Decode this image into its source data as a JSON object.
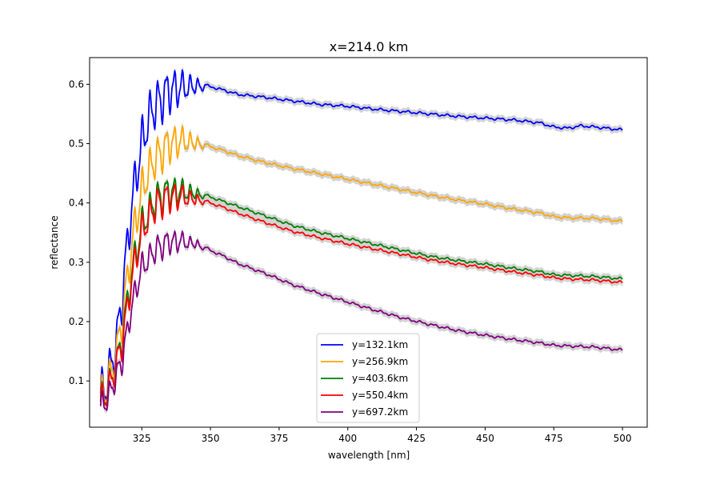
{
  "chart_data": {
    "type": "line",
    "title": "x=214.0 km",
    "xlabel": "wavelength [nm]",
    "ylabel": "reflectance",
    "xlim": [
      306,
      509
    ],
    "ylim": [
      0.022,
      0.645
    ],
    "xticks": [
      325,
      350,
      375,
      400,
      425,
      450,
      475,
      500
    ],
    "yticks": [
      0.1,
      0.2,
      0.3,
      0.4,
      0.5,
      0.6
    ],
    "xtick_labels": [
      "325",
      "350",
      "375",
      "400",
      "425",
      "450",
      "475",
      "500"
    ],
    "ytick_labels": [
      "0.1",
      "0.2",
      "0.3",
      "0.4",
      "0.5",
      "0.6"
    ],
    "grid": false,
    "legend_position": "lower-center",
    "uncertainty_band_color": "#d3d3d3",
    "x_start": 310,
    "x_end": 500,
    "series": [
      {
        "name": "y=132.1km",
        "color": "#0000ff",
        "points": [
          [
            310,
            0.07
          ],
          [
            313,
            0.11
          ],
          [
            316,
            0.17
          ],
          [
            318,
            0.25
          ],
          [
            320,
            0.34
          ],
          [
            322,
            0.42
          ],
          [
            325,
            0.5
          ],
          [
            328,
            0.55
          ],
          [
            331,
            0.57
          ],
          [
            335,
            0.59
          ],
          [
            340,
            0.595
          ],
          [
            345,
            0.597
          ],
          [
            350,
            0.596
          ],
          [
            355,
            0.59
          ],
          [
            360,
            0.583
          ],
          [
            370,
            0.578
          ],
          [
            380,
            0.572
          ],
          [
            390,
            0.566
          ],
          [
            400,
            0.563
          ],
          [
            410,
            0.558
          ],
          [
            420,
            0.554
          ],
          [
            430,
            0.55
          ],
          [
            440,
            0.546
          ],
          [
            450,
            0.543
          ],
          [
            460,
            0.54
          ],
          [
            470,
            0.535
          ],
          [
            475,
            0.528
          ],
          [
            480,
            0.526
          ],
          [
            485,
            0.53
          ],
          [
            490,
            0.528
          ],
          [
            500,
            0.523
          ]
        ]
      },
      {
        "name": "y=256.9km",
        "color": "#ffa500",
        "points": [
          [
            310,
            0.065
          ],
          [
            313,
            0.1
          ],
          [
            316,
            0.15
          ],
          [
            318,
            0.21
          ],
          [
            320,
            0.28
          ],
          [
            322,
            0.35
          ],
          [
            325,
            0.42
          ],
          [
            328,
            0.46
          ],
          [
            331,
            0.48
          ],
          [
            335,
            0.5
          ],
          [
            340,
            0.505
          ],
          [
            345,
            0.5
          ],
          [
            350,
            0.495
          ],
          [
            355,
            0.488
          ],
          [
            360,
            0.48
          ],
          [
            370,
            0.468
          ],
          [
            380,
            0.458
          ],
          [
            390,
            0.449
          ],
          [
            400,
            0.44
          ],
          [
            410,
            0.431
          ],
          [
            420,
            0.422
          ],
          [
            430,
            0.413
          ],
          [
            440,
            0.405
          ],
          [
            450,
            0.398
          ],
          [
            460,
            0.39
          ],
          [
            470,
            0.383
          ],
          [
            475,
            0.377
          ],
          [
            480,
            0.375
          ],
          [
            490,
            0.374
          ],
          [
            500,
            0.369
          ]
        ]
      },
      {
        "name": "y=403.6km",
        "color": "#008000",
        "points": [
          [
            310,
            0.06
          ],
          [
            313,
            0.09
          ],
          [
            316,
            0.13
          ],
          [
            318,
            0.18
          ],
          [
            320,
            0.24
          ],
          [
            322,
            0.3
          ],
          [
            325,
            0.36
          ],
          [
            328,
            0.39
          ],
          [
            331,
            0.41
          ],
          [
            335,
            0.42
          ],
          [
            340,
            0.42
          ],
          [
            345,
            0.415
          ],
          [
            350,
            0.41
          ],
          [
            355,
            0.402
          ],
          [
            360,
            0.394
          ],
          [
            370,
            0.378
          ],
          [
            380,
            0.362
          ],
          [
            390,
            0.35
          ],
          [
            400,
            0.34
          ],
          [
            410,
            0.33
          ],
          [
            420,
            0.32
          ],
          [
            430,
            0.31
          ],
          [
            440,
            0.303
          ],
          [
            450,
            0.297
          ],
          [
            460,
            0.29
          ],
          [
            470,
            0.284
          ],
          [
            475,
            0.279
          ],
          [
            480,
            0.278
          ],
          [
            490,
            0.276
          ],
          [
            500,
            0.272
          ]
        ]
      },
      {
        "name": "y=550.4km",
        "color": "#ff0000",
        "points": [
          [
            310,
            0.058
          ],
          [
            313,
            0.088
          ],
          [
            316,
            0.13
          ],
          [
            318,
            0.17
          ],
          [
            320,
            0.23
          ],
          [
            322,
            0.29
          ],
          [
            325,
            0.35
          ],
          [
            328,
            0.38
          ],
          [
            331,
            0.4
          ],
          [
            335,
            0.41
          ],
          [
            340,
            0.41
          ],
          [
            345,
            0.405
          ],
          [
            350,
            0.4
          ],
          [
            355,
            0.392
          ],
          [
            360,
            0.383
          ],
          [
            370,
            0.367
          ],
          [
            380,
            0.352
          ],
          [
            390,
            0.341
          ],
          [
            400,
            0.331
          ],
          [
            410,
            0.322
          ],
          [
            420,
            0.313
          ],
          [
            430,
            0.304
          ],
          [
            440,
            0.297
          ],
          [
            450,
            0.291
          ],
          [
            460,
            0.284
          ],
          [
            470,
            0.278
          ],
          [
            475,
            0.274
          ],
          [
            480,
            0.272
          ],
          [
            490,
            0.27
          ],
          [
            500,
            0.266
          ]
        ]
      },
      {
        "name": "y=697.2km",
        "color": "#800080",
        "points": [
          [
            310,
            0.052
          ],
          [
            313,
            0.075
          ],
          [
            316,
            0.11
          ],
          [
            318,
            0.14
          ],
          [
            320,
            0.19
          ],
          [
            322,
            0.24
          ],
          [
            325,
            0.29
          ],
          [
            328,
            0.31
          ],
          [
            331,
            0.325
          ],
          [
            335,
            0.335
          ],
          [
            340,
            0.335
          ],
          [
            345,
            0.33
          ],
          [
            350,
            0.32
          ],
          [
            355,
            0.31
          ],
          [
            360,
            0.298
          ],
          [
            370,
            0.281
          ],
          [
            380,
            0.262
          ],
          [
            390,
            0.247
          ],
          [
            400,
            0.233
          ],
          [
            410,
            0.219
          ],
          [
            420,
            0.206
          ],
          [
            430,
            0.195
          ],
          [
            440,
            0.185
          ],
          [
            450,
            0.177
          ],
          [
            460,
            0.17
          ],
          [
            470,
            0.164
          ],
          [
            475,
            0.16
          ],
          [
            480,
            0.159
          ],
          [
            490,
            0.157
          ],
          [
            500,
            0.152
          ]
        ]
      }
    ]
  }
}
